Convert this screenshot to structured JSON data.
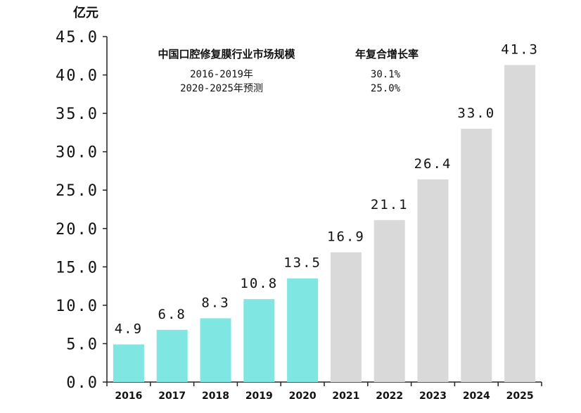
{
  "chart_data": {
    "type": "bar",
    "unit_label": "亿元",
    "categories": [
      "2016",
      "2017",
      "2018",
      "2019",
      "2020",
      "2021",
      "2022",
      "2023",
      "2024",
      "2025"
    ],
    "values": [
      4.9,
      6.8,
      8.3,
      10.8,
      13.5,
      16.9,
      21.1,
      26.4,
      33.0,
      41.3
    ],
    "value_labels": [
      "4.9",
      "6.8",
      "8.3",
      "10.8",
      "13.5",
      "16.9",
      "21.1",
      "26.4",
      "33.0",
      "41.3"
    ],
    "y_ticks": [
      "0.0",
      "5.0",
      "10.0",
      "15.0",
      "20.0",
      "25.0",
      "30.0",
      "35.0",
      "40.0",
      "45.0"
    ],
    "ylim": [
      0,
      45
    ],
    "grid": false,
    "colors": {
      "actual": "#7fe6e2",
      "forecast": "#d9d9d9",
      "axis": "#222222"
    },
    "actual_count": 5,
    "annotation": {
      "header_left": "中国口腔修复膜行业市场规模",
      "header_right": "年复合增长率",
      "rows": [
        {
          "period": "2016-2019年",
          "rate": "30.1%"
        },
        {
          "period": "2020-2025年预测",
          "rate": "25.0%"
        }
      ]
    }
  }
}
